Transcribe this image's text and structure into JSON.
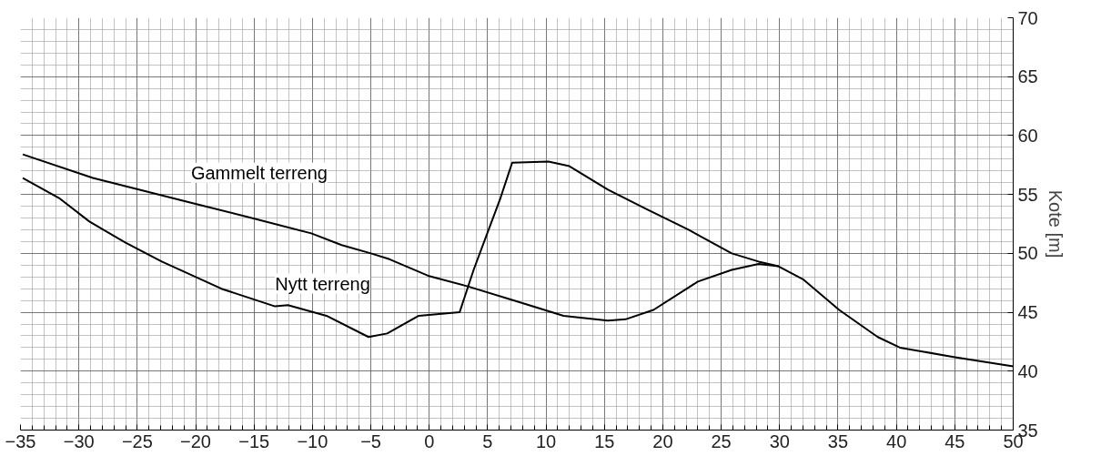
{
  "chart_data": {
    "type": "line",
    "ylabel": "Kote [m]",
    "xlim": [
      -35,
      50
    ],
    "ylim": [
      35,
      70
    ],
    "xticks": [
      -35,
      -30,
      -25,
      -20,
      -15,
      -10,
      -5,
      0,
      5,
      10,
      15,
      20,
      25,
      30,
      35,
      40,
      45,
      50
    ],
    "yticks": [
      35,
      40,
      45,
      50,
      55,
      60,
      65,
      70
    ],
    "grid": true,
    "marker": "none",
    "line_style": "solid",
    "series": [
      {
        "name": "Gammelt terreng",
        "color": "#000000",
        "x": [
          -34.8,
          -28.8,
          -20.4,
          -15.2,
          -10.1,
          -7.5,
          -5,
          -3.4,
          -0.1,
          3.3,
          7.6,
          11.5,
          15.3,
          16.8,
          19.2,
          23,
          25.9,
          28.2,
          29.9,
          32,
          35.1,
          38.4,
          40.3,
          44.9,
          50
        ],
        "values": [
          58.4,
          56.4,
          54.3,
          53.0,
          51.7,
          50.7,
          50.0,
          49.5,
          48.1,
          47.2,
          45.9,
          44.7,
          44.3,
          44.4,
          45.2,
          47.6,
          48.6,
          49.1,
          48.9,
          47.8,
          45.2,
          42.9,
          42.0,
          41.2,
          40.4
        ]
      },
      {
        "name": "Nytt terreng",
        "color": "#000000",
        "x": [
          -34.8,
          -31.7,
          -29.1,
          -26,
          -22.9,
          -17.8,
          -13.2,
          -12.1,
          -8.8,
          -5.2,
          -3.6,
          -0.9,
          2.6,
          3.8,
          6.1,
          6.8,
          7.1,
          10.2,
          12,
          15.3,
          18.7,
          22.2,
          25.9,
          28.2,
          29.9
        ],
        "values": [
          56.4,
          54.7,
          52.7,
          50.9,
          49.3,
          47.0,
          45.5,
          45.6,
          44.7,
          42.9,
          43.2,
          44.7,
          45.0,
          48.6,
          54.7,
          56.8,
          57.7,
          57.8,
          57.4,
          55.4,
          53.7,
          52.0,
          50.0,
          49.3,
          48.9
        ]
      }
    ]
  }
}
